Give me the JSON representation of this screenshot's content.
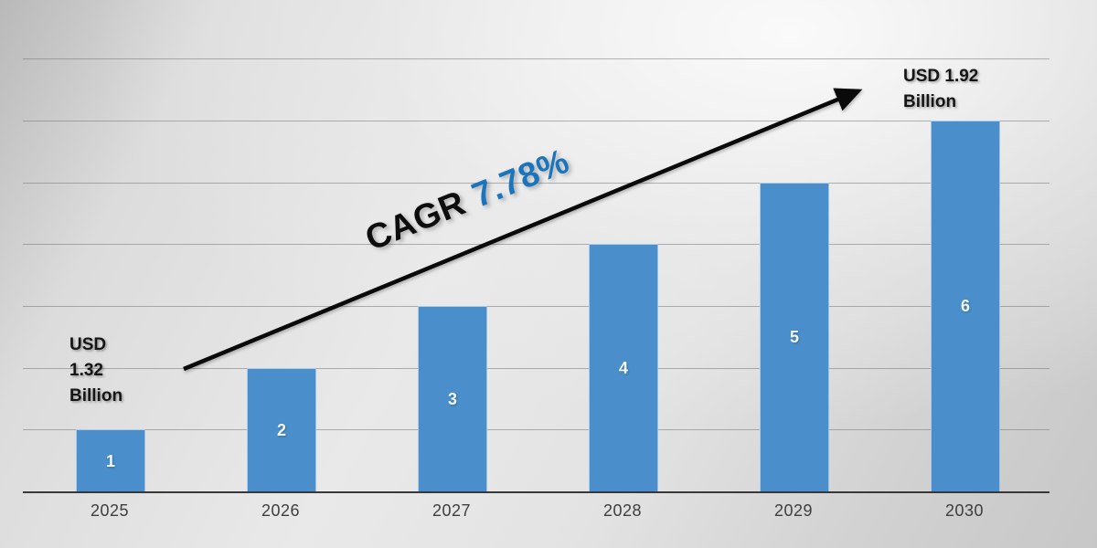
{
  "chart_data": {
    "type": "bar",
    "title": "",
    "xlabel": "",
    "ylabel": "",
    "categories": [
      "2025",
      "2026",
      "2027",
      "2028",
      "2029",
      "2030"
    ],
    "values": [
      1,
      2,
      3,
      4,
      5,
      6
    ],
    "bar_value_labels": [
      "1",
      "2",
      "3",
      "4",
      "5",
      "6"
    ],
    "ylim": [
      0,
      7.5
    ],
    "grid": true,
    "gridline_count": 7,
    "legend_position": "none",
    "annotations": {
      "start_label_lines": [
        "USD",
        "1.32",
        "Billion"
      ],
      "end_label_lines": [
        "USD 1.92",
        "Billion"
      ],
      "start_value_usd_billion": 1.32,
      "end_value_usd_billion": 1.92,
      "cagr_prefix": "CAGR",
      "cagr_value": "7.78%",
      "cagr_percent": 7.78,
      "trend_arrow_direction": "up-right"
    },
    "colors": {
      "bar_fill": "#4A8FCB",
      "cagr_prefix_text": "#0D0D0D",
      "cagr_value_text": "#1B75BC",
      "annotation_text": "#151515",
      "axis_label_text": "#3E3E3E",
      "axis_line": "#383838",
      "gridline": "#787878",
      "arrow": "#0A0A0A",
      "bar_value_text": "#F2F7FB"
    }
  }
}
